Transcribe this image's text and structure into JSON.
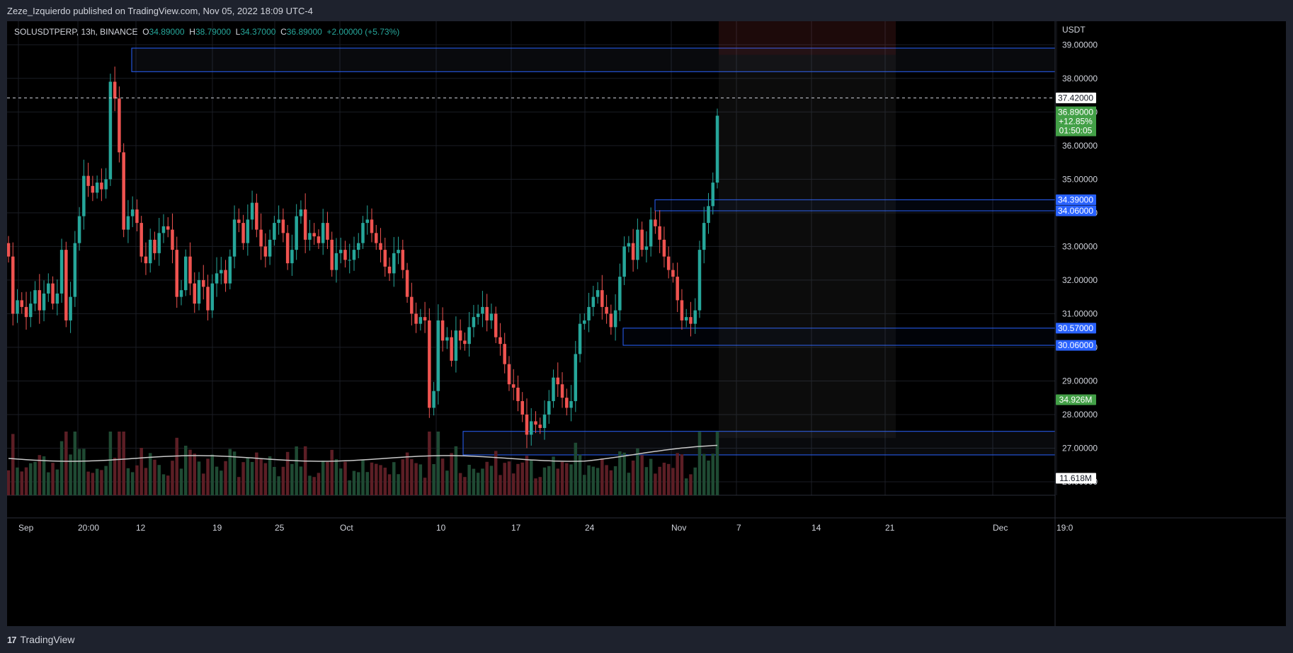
{
  "header": {
    "published": "Zeze_Izquierdo published on TradingView.com, Nov 05, 2022 18:09 UTC-4"
  },
  "legend": {
    "symbol": "SOLUSDTPERP, 13h, BINANCE",
    "open_k": "O",
    "open": "34.89000",
    "high_k": "H",
    "high": "38.79000",
    "low_k": "L",
    "low": "34.37000",
    "close_k": "C",
    "close": "36.89000",
    "change": "+2.00000 (+5.73%)"
  },
  "price_axis": {
    "currency": "USDT"
  },
  "footer": {
    "logo": "TradingView"
  },
  "chart_data": {
    "type": "candlestick",
    "symbol": "SOLUSDTPERP",
    "timeframe": "13h",
    "exchange": "BINANCE",
    "ylim": [
      25.6,
      39.7
    ],
    "y_ticks": [
      "39.00000",
      "38.00000",
      "37.00000",
      "36.00000",
      "35.00000",
      "34.00000",
      "33.00000",
      "32.00000",
      "31.00000",
      "30.00000",
      "29.00000",
      "28.00000",
      "27.00000",
      "26.00000"
    ],
    "x_ticks": [
      "Sep",
      "20:00",
      "12",
      "19",
      "25",
      "Oct",
      "10",
      "17",
      "24",
      "Nov",
      "7",
      "14",
      "21",
      "Dec",
      "19:0"
    ],
    "colors": {
      "up": "#26a69a",
      "down": "#ef5350",
      "up_vol": "#1f4a33",
      "down_vol": "#5c1e25",
      "zone": "#2962ff",
      "ma": "#c8c8c8"
    },
    "last_price": {
      "value": "36.89000",
      "change_pct": "+12.85%",
      "countdown": "01:50:05"
    },
    "marked_price": "37.42000",
    "price_labels": [
      "34.39000",
      "34.06000",
      "30.57000",
      "30.06000"
    ],
    "volume_label": "34.926M",
    "volume_ma_label": "11.618M",
    "closes": [
      32.7,
      31.0,
      31.4,
      31.2,
      30.9,
      31.3,
      31.7,
      31.1,
      31.6,
      31.9,
      31.3,
      31.6,
      32.9,
      30.8,
      31.5,
      33.1,
      33.9,
      35.1,
      34.8,
      34.6,
      34.9,
      34.7,
      35.0,
      37.9,
      37.4,
      35.8,
      33.5,
      33.9,
      34.1,
      33.7,
      32.7,
      32.5,
      33.2,
      32.8,
      33.4,
      33.6,
      33.5,
      32.9,
      31.5,
      31.7,
      32.7,
      31.9,
      31.3,
      32.0,
      31.8,
      31.1,
      31.9,
      32.2,
      32.3,
      31.9,
      32.7,
      33.8,
      33.7,
      33.1,
      33.8,
      34.3,
      33.5,
      33.0,
      32.7,
      33.2,
      33.7,
      33.8,
      33.4,
      32.5,
      32.9,
      33.9,
      34.1,
      33.2,
      33.4,
      33.3,
      33.1,
      33.7,
      33.2,
      32.3,
      32.8,
      32.9,
      32.6,
      32.6,
      32.9,
      33.1,
      33.7,
      33.8,
      33.4,
      33.1,
      32.9,
      32.4,
      32.2,
      32.8,
      32.9,
      32.3,
      31.5,
      31.0,
      30.7,
      30.9,
      30.8,
      28.2,
      28.7,
      30.8,
      30.2,
      30.3,
      29.6,
      30.5,
      30.2,
      30.1,
      30.6,
      30.9,
      31.0,
      31.2,
      30.8,
      31.0,
      30.3,
      30.1,
      29.5,
      28.9,
      28.8,
      28.4,
      28.0,
      27.4,
      27.8,
      27.7,
      27.6,
      28.0,
      28.4,
      29.1,
      28.9,
      28.5,
      28.2,
      28.4,
      29.8,
      30.7,
      30.8,
      31.2,
      31.5,
      31.7,
      31.2,
      31.0,
      30.6,
      31.1,
      32.1,
      33.0,
      33.1,
      32.6,
      33.5,
      32.9,
      33.0,
      33.8,
      33.6,
      33.2,
      32.7,
      32.3,
      32.1,
      31.4,
      30.8,
      30.9,
      30.7,
      31.1,
      32.9,
      33.7,
      34.2,
      34.9,
      36.89
    ]
  }
}
